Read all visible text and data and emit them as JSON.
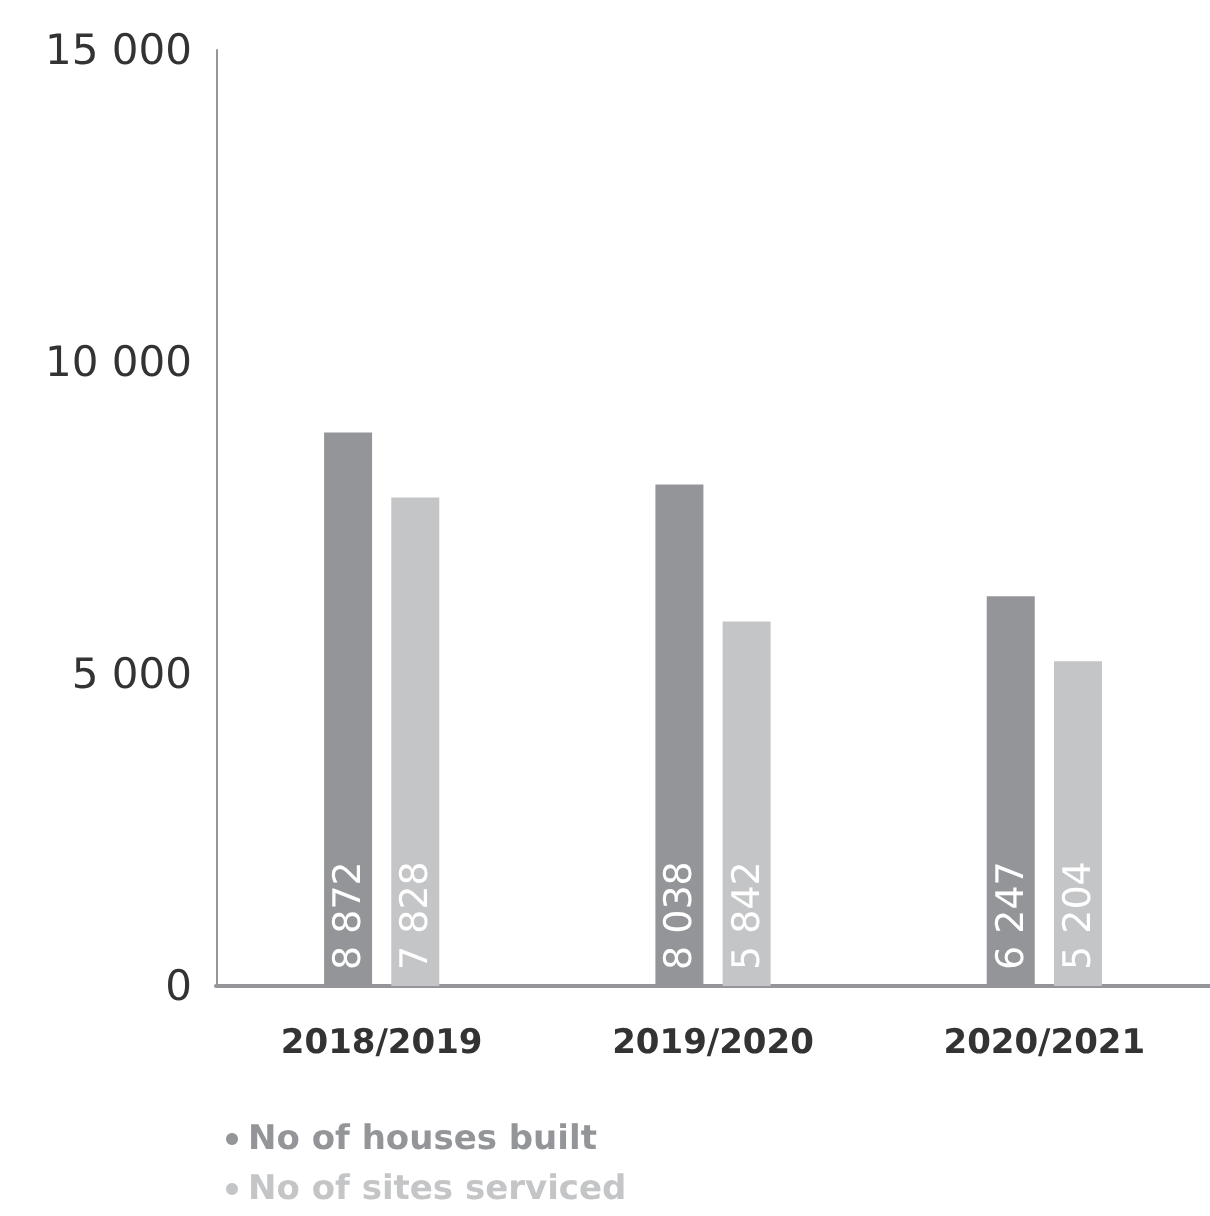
{
  "chart_data": {
    "type": "bar",
    "categories": [
      "2018/2019",
      "2019/2020",
      "2020/2021"
    ],
    "series": [
      {
        "name": "No of houses built",
        "color": "#939598",
        "values": [
          8872,
          8038,
          6247
        ]
      },
      {
        "name": "No of sites serviced",
        "color": "#c4c5c7",
        "values": [
          7828,
          5842,
          5204
        ]
      }
    ],
    "ylim": [
      0,
      15000
    ],
    "yticks": [
      {
        "value": 0,
        "label": "0"
      },
      {
        "value": 5000,
        "label": "5 000"
      },
      {
        "value": 10000,
        "label": "10 000"
      },
      {
        "value": 15000,
        "label": "15 000"
      }
    ],
    "data_labels": true,
    "grid": false,
    "legend": "bottom left"
  }
}
